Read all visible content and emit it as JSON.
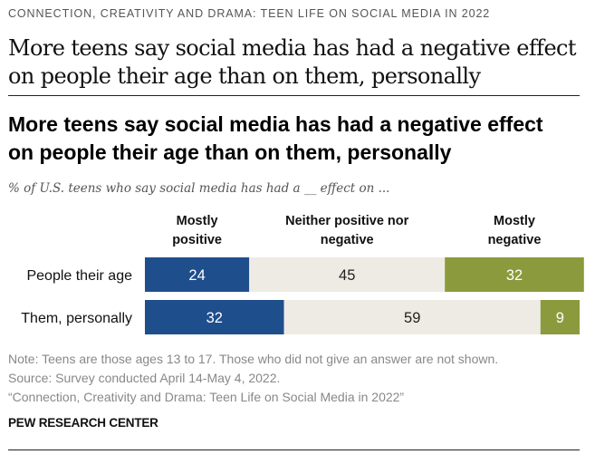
{
  "kicker": "CONNECTION, CREATIVITY AND DRAMA: TEEN LIFE ON SOCIAL MEDIA IN 2022",
  "headline": {
    "line1": "More teens say social media has had a negative effect",
    "line2": "on people their age than on them, personally"
  },
  "chart_data": {
    "type": "bar",
    "stacked": true,
    "orientation": "horizontal",
    "title": "More teens say social media has had a negative effect on people their age than on them, personally",
    "title_lines": [
      "More teens say social media has had a negative effect",
      "on people their age than on them, personally"
    ],
    "subtitle": "% of U.S. teens who say social media has had a __ effect on ...",
    "categories": [
      "People their age",
      "Them, personally"
    ],
    "series": [
      {
        "name": "Mostly positive",
        "name_lines": [
          "Mostly",
          "positive"
        ],
        "color": "#1f4e8c",
        "label_color": "#ffffff",
        "values": [
          24,
          32
        ]
      },
      {
        "name": "Neither positive nor negative",
        "name_lines": [
          "Neither positive nor",
          "negative"
        ],
        "color": "#edebe3",
        "label_color": "#222222",
        "values": [
          45,
          59
        ]
      },
      {
        "name": "Mostly negative",
        "name_lines": [
          "Mostly",
          "negative"
        ],
        "color": "#8b9a3c",
        "label_color": "#ffffff",
        "values": [
          32,
          9
        ]
      }
    ],
    "legend_position": "top",
    "grid": false
  },
  "notes": {
    "note": "Note: Teens are those ages 13 to 17. Those who did not give an answer are not shown.",
    "source": "Source: Survey conducted April 14-May 4, 2022.",
    "report": "“Connection, Creativity and Drama: Teen Life on Social Media in 2022”"
  },
  "org": "PEW RESEARCH CENTER"
}
